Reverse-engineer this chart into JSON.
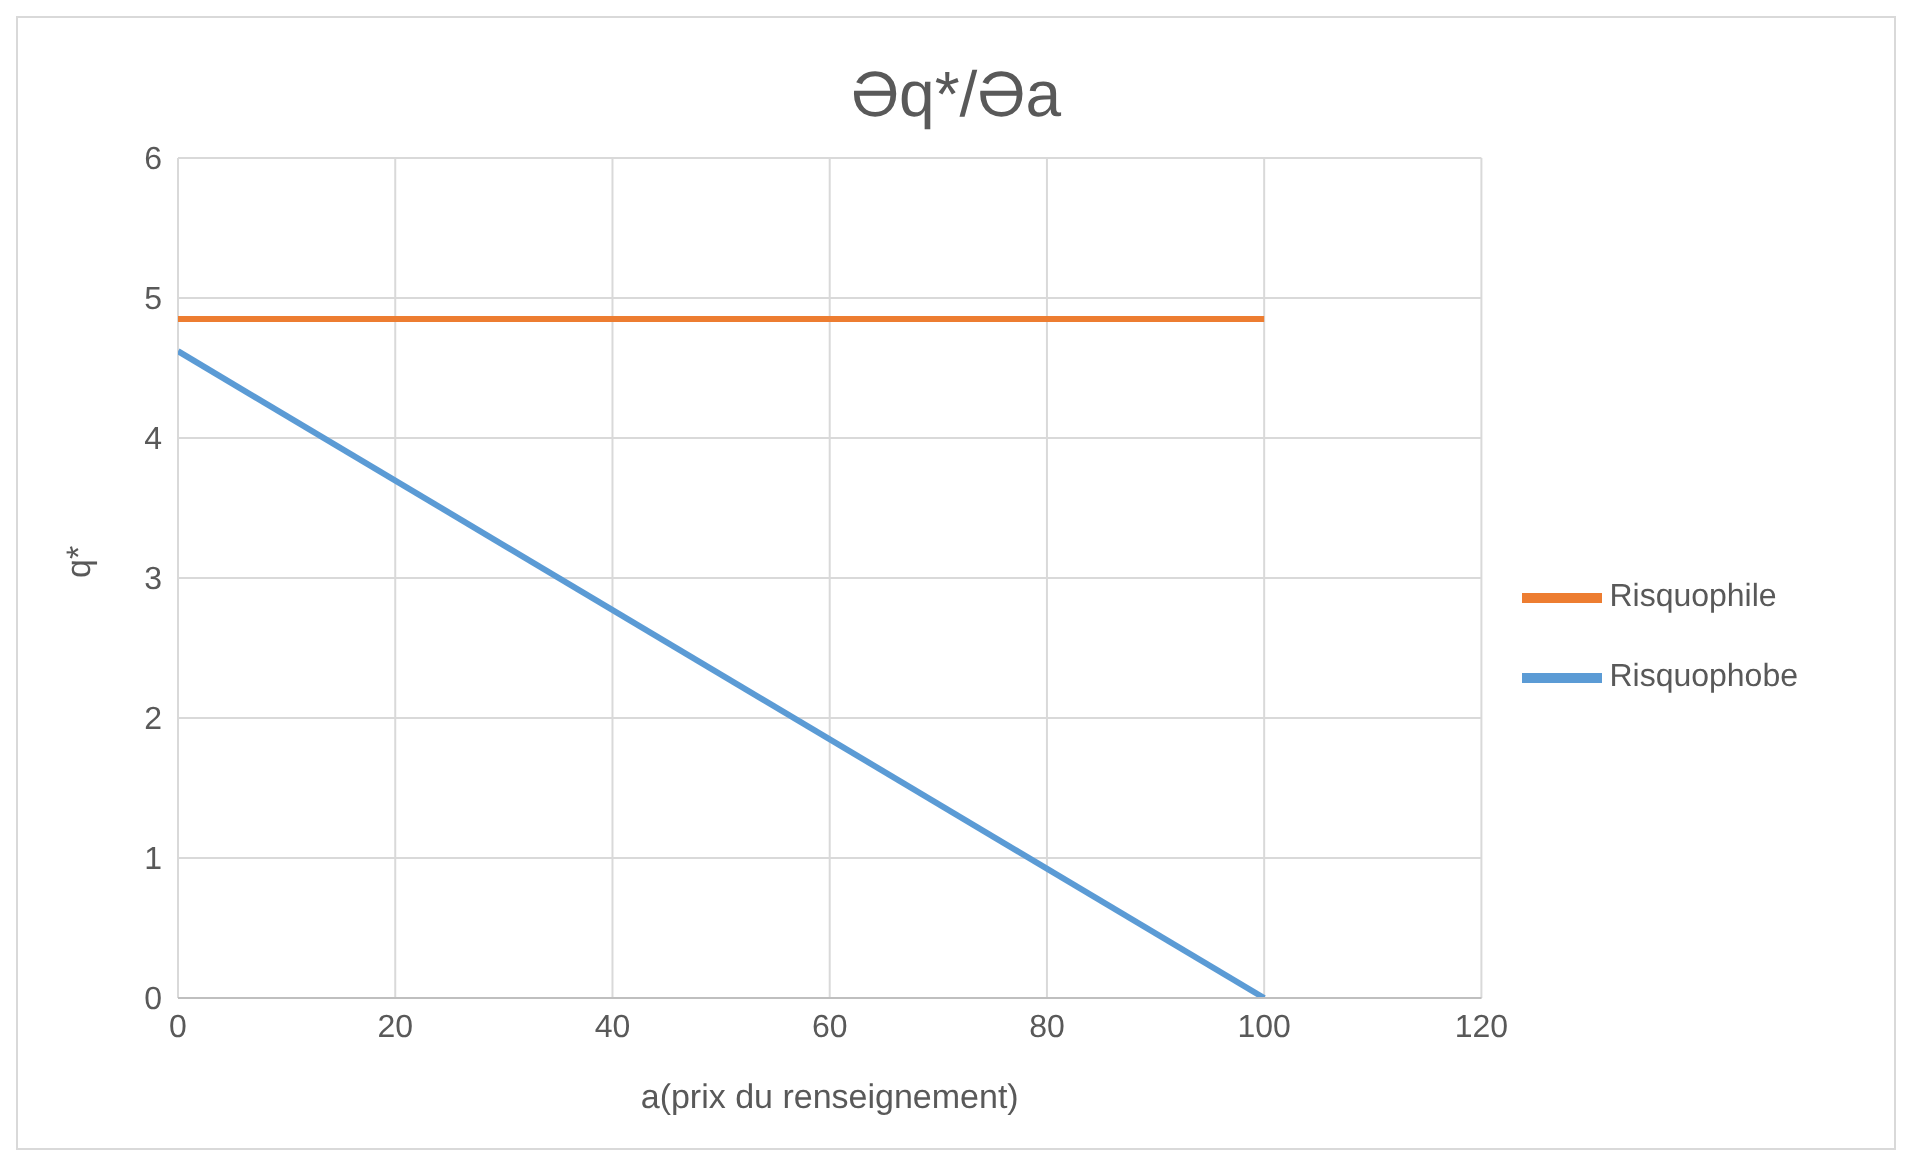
{
  "chart_data": {
    "type": "line",
    "title": "Əq*/Əa",
    "xlabel": "a(prix du renseignement)",
    "ylabel": "q*",
    "x": [
      0,
      100
    ],
    "series": [
      {
        "name": "Risquophobe",
        "color": "#5b9bd5",
        "values": [
          4.62,
          0
        ]
      },
      {
        "name": "Risquophile",
        "color": "#ed7d31",
        "values": [
          4.85,
          4.85
        ]
      }
    ],
    "xlim": [
      0,
      120
    ],
    "xticks": [
      0,
      20,
      40,
      60,
      80,
      100,
      120
    ],
    "ylim": [
      0,
      6
    ],
    "yticks": [
      0,
      1,
      2,
      3,
      4,
      5,
      6
    ],
    "grid": true,
    "legend": "right",
    "marker": "none",
    "line_style": "solid"
  }
}
